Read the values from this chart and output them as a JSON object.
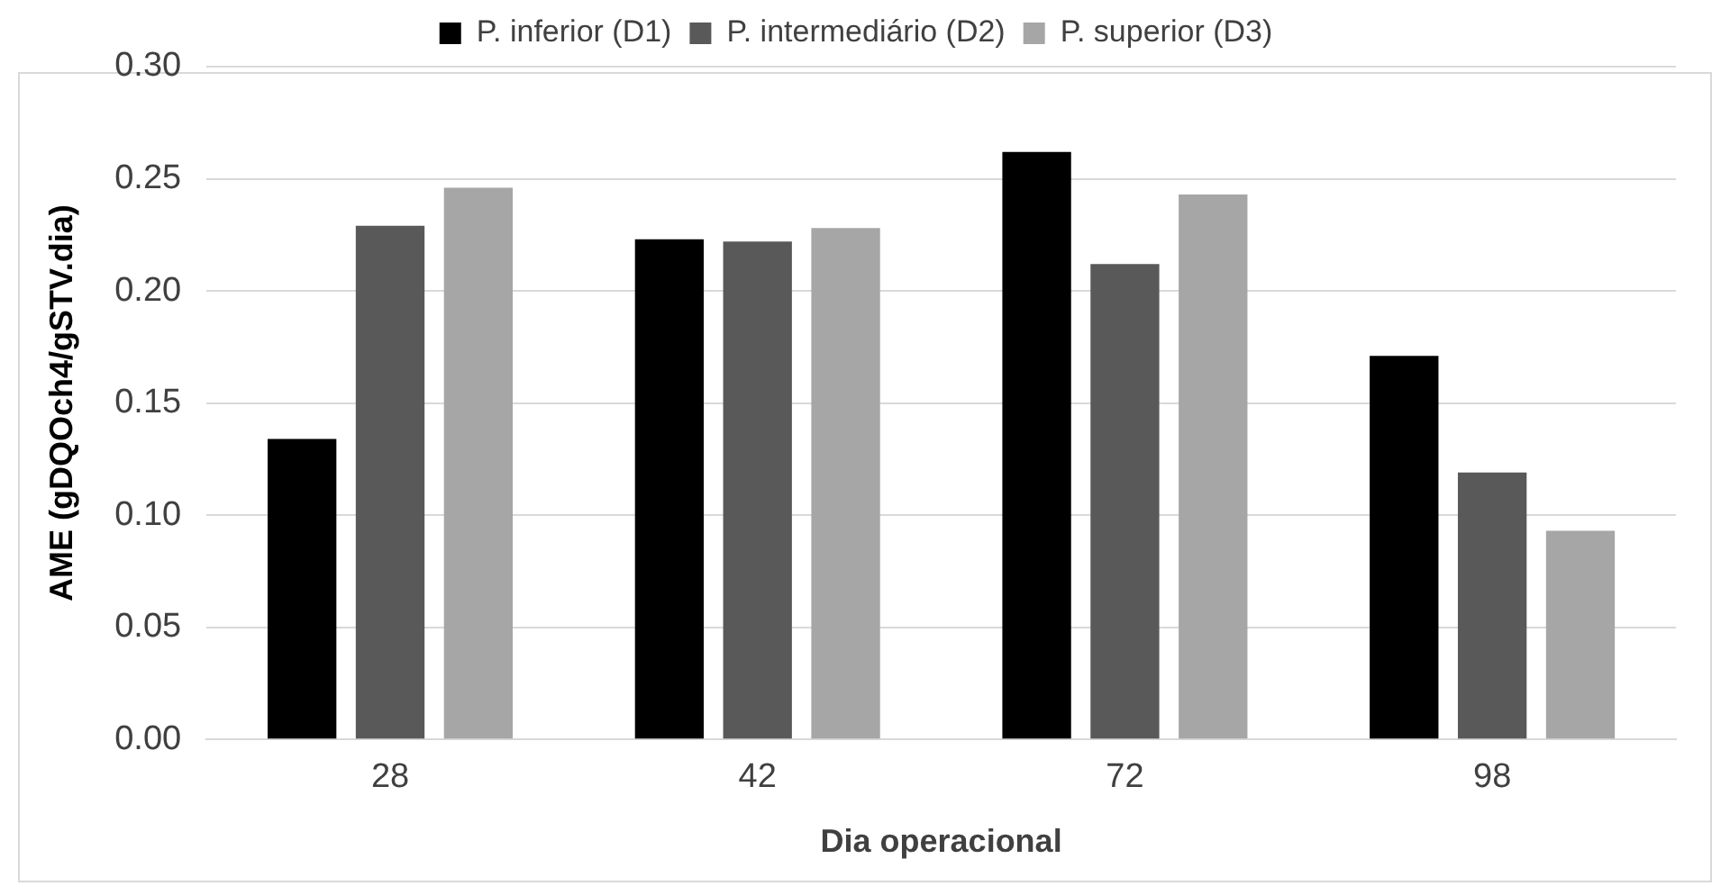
{
  "chart_data": {
    "type": "bar",
    "xlabel": "Dia operacional",
    "ylabel": "AME (gDQOch4/gSTV.dia)",
    "categories": [
      "28",
      "42",
      "72",
      "98"
    ],
    "series": [
      {
        "name": "P. inferior (D1)",
        "color": "#000000",
        "values": [
          0.134,
          0.223,
          0.262,
          0.171
        ]
      },
      {
        "name": "P. intermediário (D2)",
        "color": "#595959",
        "values": [
          0.229,
          0.222,
          0.212,
          0.119
        ]
      },
      {
        "name": "P. superior (D3)",
        "color": "#a6a6a6",
        "values": [
          0.246,
          0.228,
          0.243,
          0.093
        ]
      }
    ],
    "ylim": [
      0,
      0.3
    ],
    "yticks": [
      {
        "value": 0,
        "label": "0.00"
      },
      {
        "value": 0.05,
        "label": "0.05"
      },
      {
        "value": 0.1,
        "label": "0.10"
      },
      {
        "value": 0.15,
        "label": "0.15"
      },
      {
        "value": 0.2,
        "label": "0.20"
      },
      {
        "value": 0.25,
        "label": "0.25"
      },
      {
        "value": 0.3,
        "label": "0.30"
      }
    ],
    "grid": "y",
    "legend": "top"
  }
}
